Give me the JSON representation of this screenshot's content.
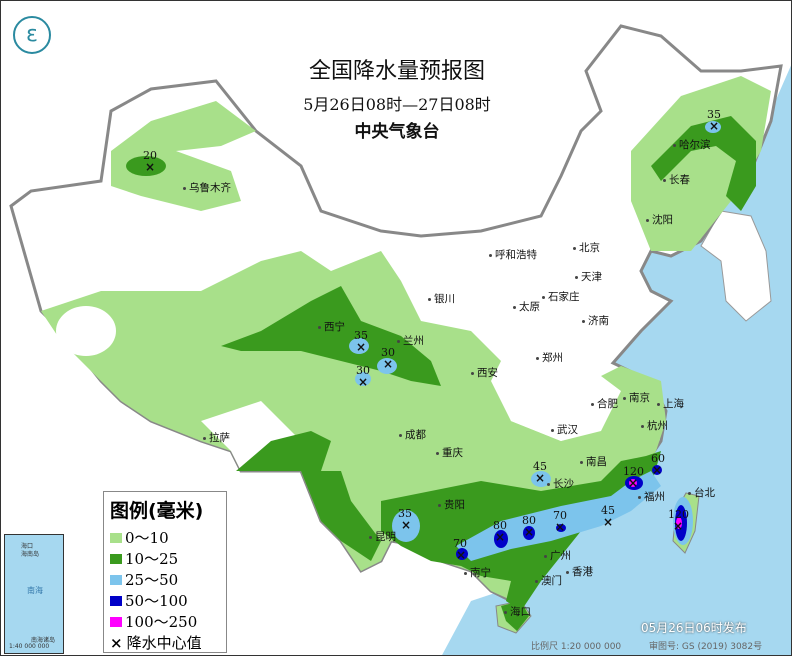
{
  "header": {
    "title": "全国降水量预报图",
    "period": "5月26日08时—27日08时",
    "issuer": "中央气象台"
  },
  "legend": {
    "title": "图例(毫米)",
    "items": [
      {
        "label": "0～10",
        "color": "#a8e08a"
      },
      {
        "label": "10～25",
        "color": "#3a9a1e"
      },
      {
        "label": "25～50",
        "color": "#7cc4ec"
      },
      {
        "label": "50～100",
        "color": "#0000c8"
      },
      {
        "label": "100～250",
        "color": "#ff00ff"
      }
    ],
    "center_symbol": "×",
    "center_label": "降水中心值"
  },
  "cities": [
    "乌鲁木齐",
    "哈尔滨",
    "长春",
    "沈阳",
    "北京",
    "天津",
    "呼和浩特",
    "银川",
    "太原",
    "石家庄",
    "济南",
    "西宁",
    "兰州",
    "西安",
    "郑州",
    "合肥",
    "南京",
    "上海",
    "杭州",
    "武汉",
    "拉萨",
    "成都",
    "重庆",
    "长沙",
    "南昌",
    "福州",
    "台北",
    "贵阳",
    "昆明",
    "南宁",
    "广州",
    "香港",
    "澳门",
    "海口"
  ],
  "rain_centers": [
    "20",
    "35",
    "35",
    "30",
    "30",
    "35",
    "70",
    "80",
    "80",
    "70",
    "45",
    "45",
    "120",
    "60",
    "120"
  ],
  "inset": {
    "labels": [
      "海口",
      "海南岛",
      "南海",
      "南海诸岛",
      "1:40 000 000"
    ]
  },
  "footer": {
    "published": "05月26日06时发布",
    "scale": "比例尺 1:20 000 000",
    "review_no": "审图号: GS (2019) 3082号"
  },
  "colors": {
    "sea": "#a6d8f0",
    "land": "#ffffff",
    "border": "#888888"
  }
}
